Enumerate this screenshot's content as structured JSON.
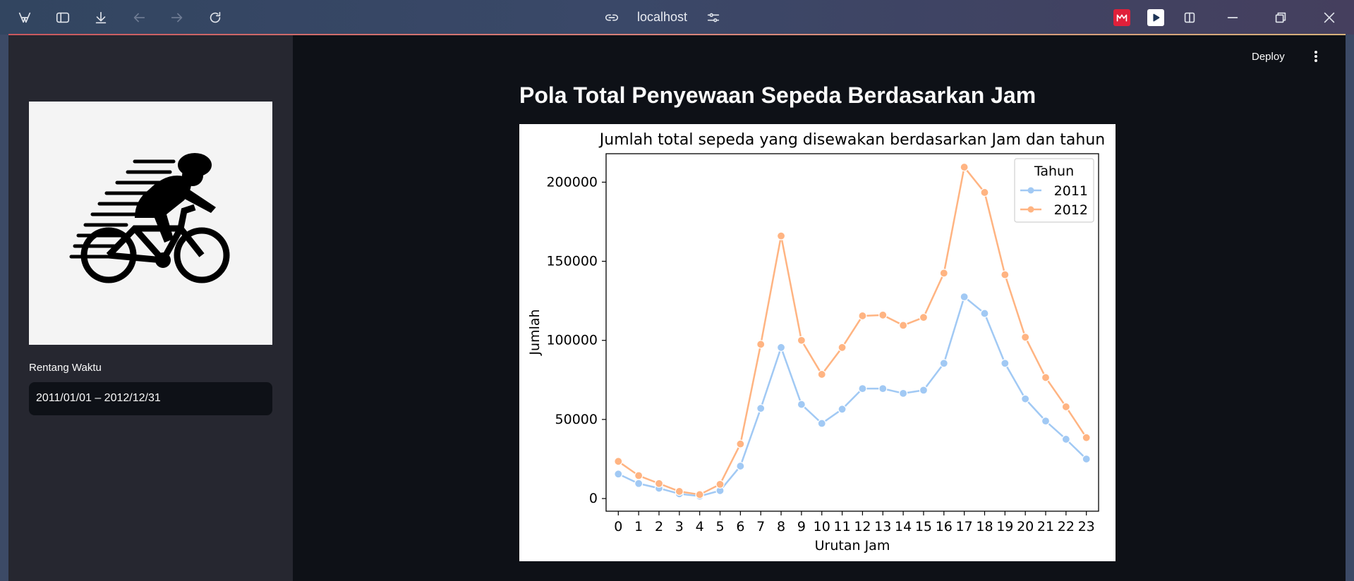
{
  "browser": {
    "address": "localhost",
    "icons": [
      "app-logo-icon",
      "sidebar-toggle-icon",
      "download-icon",
      "back-icon",
      "forward-icon",
      "reload-icon",
      "link-icon",
      "site-settings-icon",
      "extension-icon",
      "extension-icon",
      "split-view-icon",
      "minimize-icon",
      "restore-icon",
      "close-icon"
    ]
  },
  "sidebar": {
    "image": "cyclist-logo",
    "range_label": "Rentang Waktu",
    "range_value": "2011/01/01 – 2012/12/31"
  },
  "header": {
    "deploy_label": "Deploy"
  },
  "main": {
    "title": "Pola Total Penyewaan Sepeda Berdasarkan Jam"
  },
  "colors": {
    "series_2011": "#a1c9f4",
    "series_2012": "#ffb482",
    "accent_ext_red": "#e0203a"
  },
  "chart_data": {
    "type": "line",
    "title": "Jumlah total sepeda yang disewakan berdasarkan Jam dan tahun",
    "xlabel": "Urutan Jam",
    "ylabel": "Jumlah",
    "x": [
      0,
      1,
      2,
      3,
      4,
      5,
      6,
      7,
      8,
      9,
      10,
      11,
      12,
      13,
      14,
      15,
      16,
      17,
      18,
      19,
      20,
      21,
      22,
      23
    ],
    "ylim": [
      -8000,
      218000
    ],
    "yticks": [
      0,
      50000,
      100000,
      150000,
      200000
    ],
    "legend_title": "Tahun",
    "legend_position": "top-right",
    "grid": false,
    "series": [
      {
        "name": "2011",
        "color": "#a1c9f4",
        "values": [
          15500,
          9500,
          6500,
          3000,
          1500,
          5000,
          20500,
          57000,
          95500,
          59500,
          47500,
          56500,
          69500,
          69500,
          66500,
          68500,
          85500,
          127500,
          117000,
          85500,
          63000,
          49000,
          37500,
          25000
        ]
      },
      {
        "name": "2012",
        "color": "#ffb482",
        "values": [
          23500,
          14500,
          9500,
          4500,
          2500,
          9000,
          34500,
          97500,
          166000,
          100000,
          78500,
          95500,
          115500,
          116000,
          109500,
          114500,
          142500,
          209500,
          193500,
          141500,
          102000,
          76500,
          58000,
          38500
        ]
      }
    ]
  }
}
